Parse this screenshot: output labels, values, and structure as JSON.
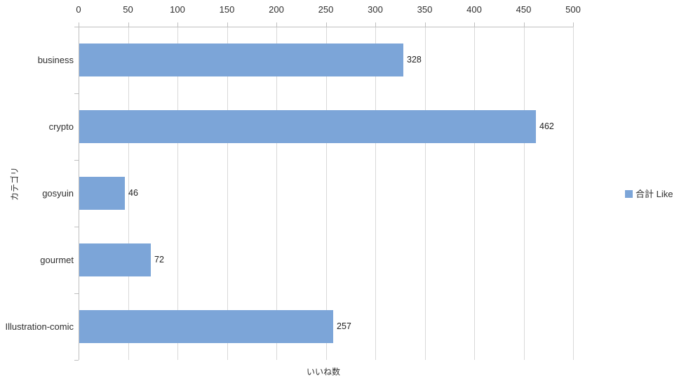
{
  "chart_data": {
    "type": "bar",
    "orientation": "horizontal",
    "categories": [
      "business",
      "crypto",
      "gosyuin",
      "gourmet",
      "Illustration-comic"
    ],
    "series": [
      {
        "name": "合計 Like",
        "values": [
          328,
          462,
          46,
          72,
          257
        ]
      }
    ],
    "data_labels": [
      "328",
      "462",
      "46",
      "72",
      "257"
    ],
    "xlabel": "いいね数",
    "ylabel": "カテゴリ",
    "xlim": [
      0,
      500
    ],
    "xticks": [
      0,
      50,
      100,
      150,
      200,
      250,
      300,
      350,
      400,
      450,
      500
    ],
    "grid": true,
    "legend_position": "right",
    "colors": {
      "bar_fill": "#7ca5d8",
      "gridline": "#d9d9d9",
      "axis_line": "#bfbfbf",
      "text": "#2f2f2f"
    }
  },
  "legend": {
    "label": "合計 Like"
  },
  "axes": {
    "x_title": "いいね数",
    "y_title": "カテゴリ"
  }
}
